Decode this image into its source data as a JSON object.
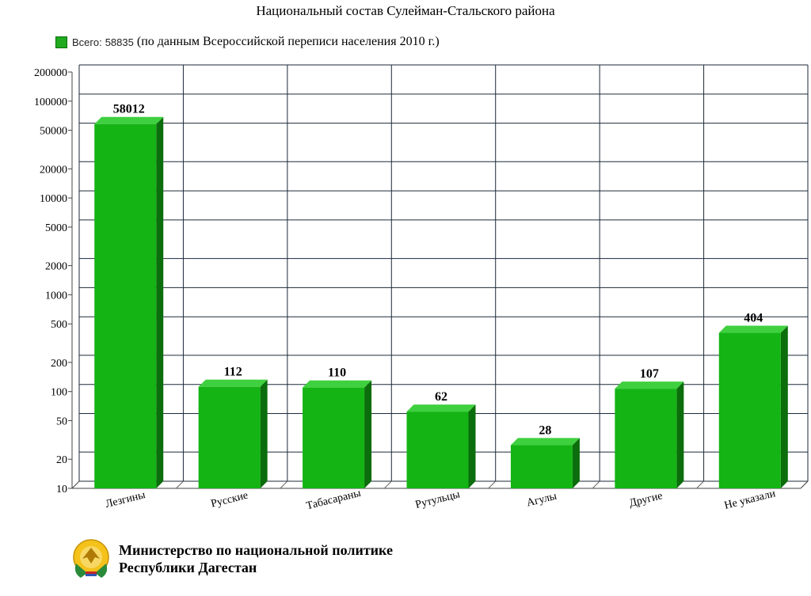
{
  "chart_data": {
    "type": "bar",
    "title": "Национальный состав Сулейман-Стальского района",
    "legend": {
      "label": "Всего:",
      "total": "58835",
      "note": "(по данным Всероссийской переписи населения 2010 г.)",
      "color": "#1faa1f"
    },
    "y_scale": "log",
    "ylim": [
      10,
      200000
    ],
    "y_ticks": [
      10,
      20,
      50,
      100,
      200,
      500,
      1000,
      2000,
      5000,
      10000,
      20000,
      50000,
      100000,
      200000
    ],
    "y_tick_labels": [
      "10",
      "20",
      "50",
      "100",
      "200",
      "500",
      "1000",
      "2000",
      "5000",
      "10000",
      "20000",
      "50000",
      "100000",
      "200000"
    ],
    "grid": true,
    "categories": [
      "Лезгины",
      "Русские",
      "Табасараны",
      "Рутульцы",
      "Агулы",
      "Другие",
      "Не указали"
    ],
    "values": [
      58012,
      112,
      110,
      62,
      28,
      107,
      404
    ],
    "value_labels": [
      "58012",
      "112",
      "110",
      "62",
      "28",
      "107",
      "404"
    ],
    "bar_color": "#14b414",
    "bar_side_color": "#0b6d0b",
    "bar_top_color": "#3fd03f"
  },
  "footer": {
    "line1": "Министерство по национальной политике",
    "line2": "Республики Дагестан",
    "emblem": "dagestan-emblem-icon"
  }
}
